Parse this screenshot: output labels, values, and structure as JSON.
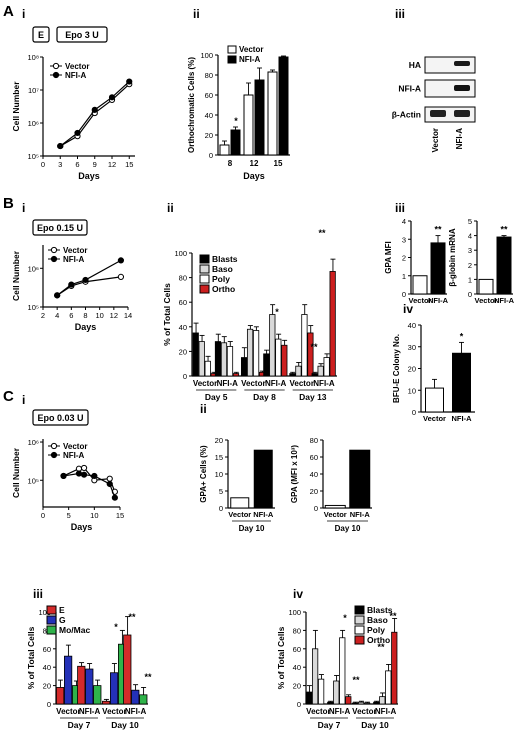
{
  "panel_letters": {
    "A": "A",
    "B": "B",
    "C": "C"
  },
  "sub_labels": {
    "i": "i",
    "ii": "ii",
    "iii": "iii",
    "iv": "iv"
  },
  "colors": {
    "vector": "#ffffff",
    "nfia": "#000000",
    "blasts": "#000000",
    "baso": "#d9d9d9",
    "poly": "#ffffff",
    "ortho": "#cc1f1f",
    "E": "#d42a2a",
    "G": "#2431b8",
    "MoMac": "#2fb34a",
    "erbar": "#000000"
  },
  "chart_data": [
    {
      "id": "Ai",
      "type": "line",
      "box_label": "E",
      "title": "Epo 3 U",
      "xlabel": "Days",
      "ylabel": "Cell Number",
      "yscale": "log",
      "ylim": [
        100000,
        100000000
      ],
      "yticks": [
        "10⁵",
        "10⁶",
        "10⁷",
        "10⁸"
      ],
      "xticks": [
        0,
        3,
        6,
        9,
        12,
        15
      ],
      "xlim": [
        0,
        16
      ],
      "series": [
        {
          "name": "Vector",
          "marker": "open",
          "x": [
            3,
            6,
            9,
            12,
            15
          ],
          "y": [
            200000,
            400000,
            2000000,
            5000000,
            15000000
          ]
        },
        {
          "name": "NFI-A",
          "marker": "filled",
          "x": [
            3,
            6,
            9,
            12,
            15
          ],
          "y": [
            200000,
            500000,
            2500000,
            6000000,
            18000000
          ]
        }
      ]
    },
    {
      "id": "Aii",
      "type": "bar",
      "ylabel": "Orthochromatic Cells (%)",
      "xlabel": "Days",
      "ylim": [
        0,
        100
      ],
      "yticks": [
        0,
        20,
        40,
        60,
        80,
        100
      ],
      "categories": [
        "8",
        "12",
        "15"
      ],
      "legend": [
        "Vector",
        "NFI-A"
      ],
      "series": [
        {
          "name": "Vector",
          "values": [
            10,
            60,
            83
          ],
          "err": [
            4,
            12,
            2
          ]
        },
        {
          "name": "NFI-A",
          "values": [
            25,
            75,
            98
          ],
          "err": [
            3,
            12,
            1
          ]
        }
      ],
      "annotations": [
        {
          "category": "8",
          "text": "*"
        }
      ]
    },
    {
      "id": "Aiii",
      "type": "blot",
      "rows": [
        "HA",
        "NFI-A",
        "β-Actin"
      ],
      "lanes": [
        "Vector",
        "NFI-A"
      ]
    },
    {
      "id": "Bi",
      "type": "line",
      "title": "Epo 0.15 U",
      "xlabel": "Days",
      "ylabel": "Cell Number",
      "yscale": "log",
      "yticks": [
        "10⁵",
        "10⁶"
      ],
      "xticks": [
        2,
        4,
        6,
        8,
        10,
        12,
        14
      ],
      "xlim": [
        2,
        14
      ],
      "series": [
        {
          "name": "Vector",
          "marker": "open",
          "x": [
            4,
            6,
            8,
            13
          ],
          "y": [
            200000,
            350000,
            450000,
            600000
          ]
        },
        {
          "name": "NFI-A",
          "marker": "filled",
          "x": [
            4,
            6,
            8,
            13
          ],
          "y": [
            200000,
            380000,
            500000,
            1600000
          ]
        }
      ]
    },
    {
      "id": "Bii",
      "type": "bar",
      "ylabel": "% of Total Cells",
      "ylim": [
        0,
        100
      ],
      "yticks": [
        0,
        20,
        40,
        60,
        80,
        100
      ],
      "groups": [
        "Day 5",
        "Day 8",
        "Day 13"
      ],
      "subgroups": [
        "Vector",
        "NFI-A"
      ],
      "legend": [
        "Blasts",
        "Baso",
        "Poly",
        "Ortho"
      ],
      "values": [
        [
          [
            35,
            28,
            12,
            2
          ],
          [
            28,
            27,
            24,
            2
          ]
        ],
        [
          [
            15,
            38,
            37,
            3
          ],
          [
            18,
            50,
            30,
            25
          ]
        ],
        [
          [
            2,
            8,
            50,
            35
          ],
          [
            2,
            8,
            15,
            85
          ]
        ]
      ],
      "err": [
        [
          [
            8,
            5,
            4,
            1
          ],
          [
            6,
            5,
            4,
            1
          ]
        ],
        [
          [
            8,
            3,
            3,
            1
          ],
          [
            3,
            8,
            4,
            4
          ]
        ],
        [
          [
            1,
            3,
            8,
            6
          ],
          [
            1,
            2,
            3,
            10
          ]
        ]
      ],
      "annotations": [
        {
          "group": "Day 8",
          "sub": "NFI-A",
          "text": "*"
        },
        {
          "group": "Day 13",
          "sub": "NFI-A",
          "text": "**"
        },
        {
          "group": "Day 13",
          "sub": "NFI-A",
          "text": "**"
        }
      ]
    },
    {
      "id": "Biii_a",
      "type": "bar",
      "ylabel": "GPA MFI",
      "categories": [
        "Vector",
        "NFI-A"
      ],
      "values": [
        1,
        2.8
      ],
      "err": [
        0,
        0.4
      ],
      "ylim": [
        0,
        4
      ],
      "yticks": [
        "0",
        "1",
        "2",
        "3",
        "4"
      ],
      "annotations": [
        "**"
      ]
    },
    {
      "id": "Biii_b",
      "type": "bar",
      "ylabel": "β-globin mRNA",
      "categories": [
        "Vector",
        "NFI-A"
      ],
      "values": [
        1,
        3.9
      ],
      "err": [
        0,
        0.1
      ],
      "ylim": [
        0,
        5
      ],
      "yticks": [
        "0",
        "1",
        "2",
        "3",
        "4",
        "5"
      ],
      "annotations": [
        "**"
      ]
    },
    {
      "id": "Biv",
      "type": "bar",
      "ylabel": "BFU-E Colony No.",
      "categories": [
        "Vector",
        "NFI-A"
      ],
      "values": [
        11,
        27
      ],
      "err": [
        4,
        5
      ],
      "ylim": [
        0,
        40
      ],
      "yticks": [
        "0",
        "10",
        "20",
        "30",
        "40"
      ],
      "annotations": [
        "*"
      ]
    },
    {
      "id": "Ci",
      "type": "line",
      "title": "Epo 0.03 U",
      "xlabel": "Days",
      "ylabel": "Cell Number",
      "yscale": "log",
      "yticks": [
        "10⁵",
        "10⁶"
      ],
      "xticks": [
        0,
        5,
        10,
        15
      ],
      "xlim": [
        0,
        15
      ],
      "series": [
        {
          "name": "Vector",
          "marker": "open",
          "x": [
            4,
            7,
            8,
            10,
            13,
            14
          ],
          "y": [
            130000,
            200000,
            210000,
            100000,
            110000,
            50000
          ]
        },
        {
          "name": "NFI-A",
          "marker": "filled",
          "x": [
            4,
            7,
            8,
            10,
            13,
            14
          ],
          "y": [
            130000,
            150000,
            140000,
            130000,
            80000,
            35000
          ]
        }
      ]
    },
    {
      "id": "Cii_a",
      "type": "bar",
      "ylabel": "GPA+ Cells (%)",
      "xlabel": "Day 10",
      "categories": [
        "Vector",
        "NFI-A"
      ],
      "values": [
        3,
        17
      ],
      "ylim": [
        0,
        20
      ],
      "yticks": [
        "0",
        "5",
        "10",
        "15",
        "20"
      ]
    },
    {
      "id": "Cii_b",
      "type": "bar",
      "ylabel": "GPA (MFI x 10³)",
      "xlabel": "Day 10",
      "categories": [
        "Vector",
        "NFI-A"
      ],
      "values": [
        3,
        68
      ],
      "ylim": [
        0,
        80
      ],
      "yticks": [
        "0",
        "20",
        "40",
        "60",
        "80"
      ]
    },
    {
      "id": "Ciii",
      "type": "bar",
      "ylabel": "% of Total Cells",
      "ylim": [
        0,
        100
      ],
      "yticks": [
        0,
        20,
        40,
        60,
        80,
        100
      ],
      "groups": [
        "Day 7",
        "Day 10"
      ],
      "subgroups": [
        "Vector",
        "NFI-A"
      ],
      "legend": [
        "E",
        "G",
        "Mo/Mac"
      ],
      "values": [
        [
          [
            18,
            52,
            20
          ],
          [
            41,
            38,
            20
          ]
        ],
        [
          [
            3,
            34,
            65
          ],
          [
            75,
            15,
            10
          ]
        ]
      ],
      "err": [
        [
          [
            8,
            12,
            5
          ],
          [
            4,
            6,
            6
          ]
        ],
        [
          [
            2,
            10,
            15
          ],
          [
            20,
            6,
            8
          ]
        ]
      ],
      "annotations": [
        {
          "group": "Day 7",
          "sub": "NFI-A",
          "text": "*"
        },
        {
          "group": "Day 10",
          "sub": "NFI-A",
          "text": "**"
        },
        {
          "group": "Day 10",
          "sub": "NFI-A",
          "text": "**"
        }
      ]
    },
    {
      "id": "Civ",
      "type": "bar",
      "ylabel": "% of Total Cells",
      "ylim": [
        0,
        100
      ],
      "yticks": [
        0,
        20,
        40,
        60,
        80,
        100
      ],
      "groups": [
        "Day 7",
        "Day 10"
      ],
      "subgroups": [
        "Vector",
        "NFI-A"
      ],
      "legend": [
        "Blasts",
        "Baso",
        "Poly",
        "Ortho"
      ],
      "values": [
        [
          [
            13,
            60,
            27,
            0
          ],
          [
            2,
            25,
            72,
            8
          ]
        ],
        [
          [
            1,
            2,
            1,
            0
          ],
          [
            2,
            8,
            36,
            78
          ]
        ]
      ],
      "err": [
        [
          [
            7,
            20,
            5,
            0
          ],
          [
            1,
            6,
            8,
            2
          ]
        ],
        [
          [
            1,
            1,
            1,
            0
          ],
          [
            1,
            4,
            7,
            15
          ]
        ]
      ],
      "annotations": [
        {
          "group": "Day 7",
          "sub": "NFI-A",
          "text": "*"
        },
        {
          "group": "Day 7",
          "sub": "NFI-A",
          "text": "**"
        },
        {
          "group": "Day 10",
          "sub": "NFI-A",
          "text": "**"
        },
        {
          "group": "Day 10",
          "sub": "NFI-A",
          "text": "**"
        }
      ]
    }
  ]
}
